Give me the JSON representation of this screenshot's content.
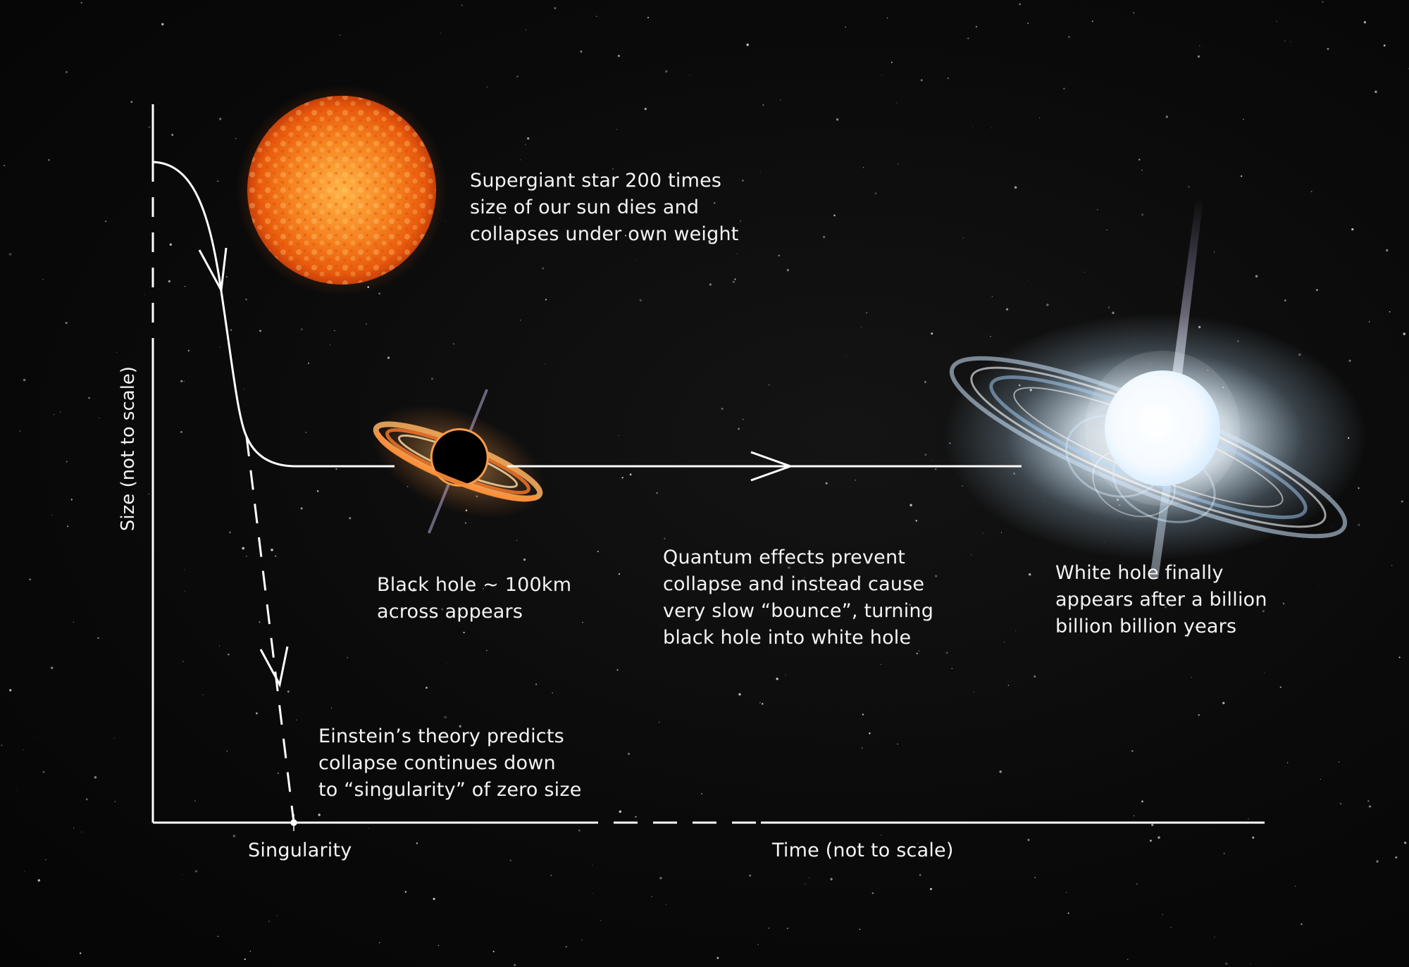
{
  "axes": {
    "y_label": "Size (not to scale)",
    "x_label": "Time (not to scale)",
    "x_marker": "Singularity"
  },
  "annotations": {
    "supergiant": "Supergiant star 200 times\nsize of our sun dies and\ncollapses under own weight",
    "black_hole": "Black hole ~ 100km\nacross appears",
    "quantum": "Quantum effects prevent\ncollapse and instead cause\nvery slow “bounce”, turning\nblack hole into white hole",
    "white_hole": "White hole finally\nappears after a billion\nbillion billion years",
    "einstein": "Einstein’s theory predicts\ncollapse continues down\nto “singularity” of zero size"
  },
  "colors": {
    "background": "#060606",
    "line": "#ffffff",
    "star_core": "#ffb347",
    "star_edge": "#e85a0c",
    "white_hole_glow": "#bfe3ff"
  },
  "icons": {
    "star": "supergiant-star-icon",
    "black_hole": "black-hole-icon",
    "white_hole": "white-hole-icon"
  }
}
